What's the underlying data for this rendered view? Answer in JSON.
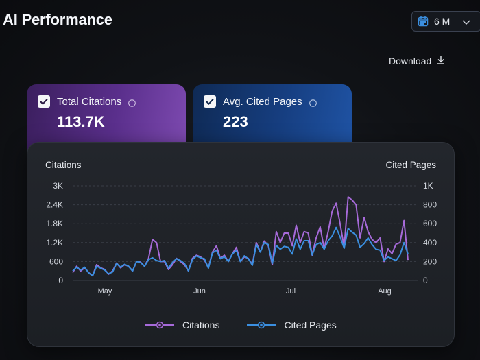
{
  "header": {
    "title": "AI Performance",
    "range_label": "6 M",
    "download_label": "Download"
  },
  "tabs": [
    {
      "label": "Total Citations",
      "value": "113.7K",
      "checked": true,
      "color": "#6a3aa0"
    },
    {
      "label": "Avg. Cited Pages",
      "value": "223",
      "checked": true,
      "color": "#1a4790"
    }
  ],
  "chart_data": {
    "type": "line",
    "ylabel": "Citations",
    "y2label": "Cited Pages",
    "ylim": [
      0,
      3000
    ],
    "y2lim": [
      0,
      1000
    ],
    "yticks": [
      "0",
      "600",
      "1.2K",
      "1.8K",
      "2.4K",
      "3K"
    ],
    "y2ticks": [
      "0",
      "200",
      "400",
      "600",
      "800",
      "1K"
    ],
    "xticks": [
      "May",
      "Jun",
      "Jul",
      "Aug"
    ],
    "grid": true,
    "legend": "bottom-center",
    "series": [
      {
        "name": "Citations",
        "axis": "left",
        "color": "#a66ad9",
        "values": [
          250,
          450,
          300,
          400,
          250,
          150,
          500,
          400,
          350,
          200,
          300,
          550,
          400,
          500,
          450,
          300,
          600,
          580,
          450,
          700,
          1300,
          1200,
          600,
          600,
          350,
          500,
          700,
          600,
          500,
          300,
          700,
          800,
          750,
          650,
          400,
          900,
          1100,
          700,
          800,
          600,
          850,
          1050,
          600,
          750,
          700,
          500,
          1200,
          900,
          1250,
          1100,
          500,
          1550,
          1200,
          1500,
          1500,
          1100,
          1750,
          1200,
          1550,
          1500,
          800,
          1350,
          1700,
          1000,
          1550,
          2200,
          2450,
          1800,
          1050,
          2650,
          2550,
          2400,
          1350,
          2000,
          1550,
          1300,
          1200,
          1350,
          600,
          1000,
          850,
          1150,
          1200,
          1900,
          650
        ]
      },
      {
        "name": "Cited Pages",
        "axis": "right",
        "color": "#3b8fe0",
        "values": [
          100,
          140,
          110,
          140,
          80,
          50,
          150,
          130,
          110,
          70,
          90,
          180,
          140,
          170,
          150,
          100,
          200,
          190,
          150,
          220,
          240,
          210,
          200,
          210,
          130,
          190,
          230,
          210,
          180,
          100,
          220,
          260,
          240,
          230,
          130,
          290,
          320,
          230,
          250,
          200,
          280,
          320,
          200,
          260,
          230,
          160,
          380,
          300,
          400,
          380,
          180,
          370,
          330,
          360,
          350,
          280,
          440,
          330,
          420,
          420,
          270,
          380,
          400,
          330,
          420,
          470,
          560,
          460,
          340,
          550,
          510,
          480,
          350,
          390,
          450,
          380,
          330,
          320,
          210,
          250,
          230,
          210,
          270,
          400,
          280
        ]
      }
    ]
  },
  "legend": [
    {
      "label": "Citations",
      "color": "#a66ad9"
    },
    {
      "label": "Cited Pages",
      "color": "#3b8fe0"
    }
  ]
}
